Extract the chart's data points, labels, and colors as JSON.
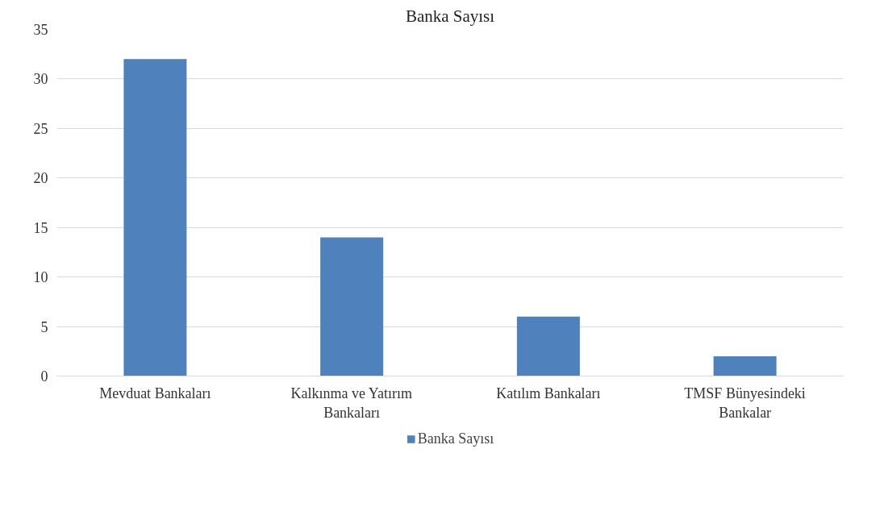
{
  "chart_data": {
    "type": "bar",
    "title": "Banka Sayısı",
    "categories": [
      "Mevduat Bankaları",
      "Kalkınma ve Yatırım Bankaları",
      "Katılım Bankaları",
      "TMSF Bünyesindeki Bankalar"
    ],
    "series": [
      {
        "name": "Banka Sayısı",
        "color": "#4f81bd",
        "values": [
          32,
          14,
          6,
          2
        ]
      }
    ],
    "ylim": [
      0,
      35
    ],
    "yticks": [
      0,
      5,
      10,
      15,
      20,
      25,
      30,
      35
    ],
    "grid": "y",
    "legend": "bottom"
  }
}
